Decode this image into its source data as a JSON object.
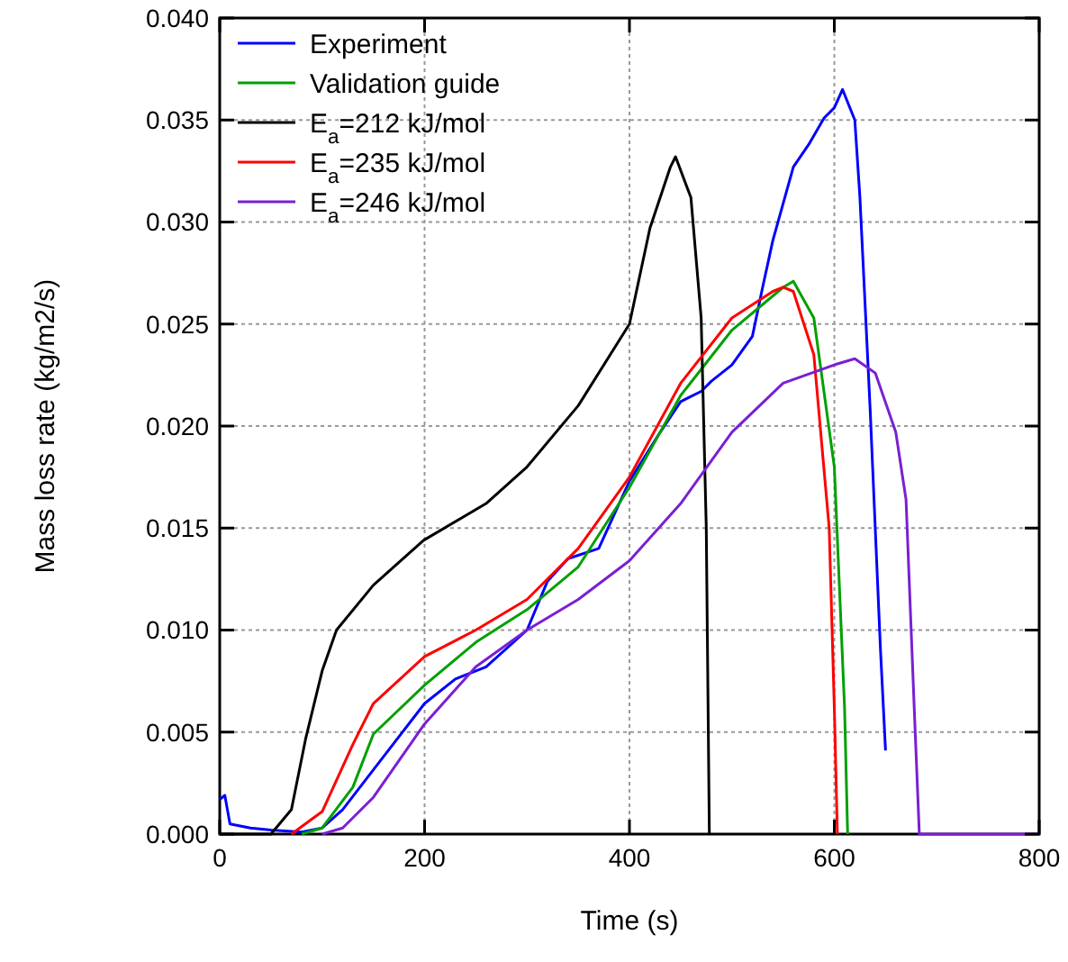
{
  "chart_data": {
    "type": "line",
    "xlabel": "Time (s)",
    "ylabel": "Mass loss rate (kg/m2/s)",
    "xlim": [
      0,
      800
    ],
    "ylim": [
      0,
      0.04
    ],
    "xticks": [
      0,
      200,
      400,
      600,
      800
    ],
    "yticks": [
      {
        "value": 0,
        "label": "0.000"
      },
      {
        "value": 0.005,
        "label": "0.005"
      },
      {
        "value": 0.01,
        "label": "0.010"
      },
      {
        "value": 0.015,
        "label": "0.015"
      },
      {
        "value": 0.02,
        "label": "0.020"
      },
      {
        "value": 0.025,
        "label": "0.025"
      },
      {
        "value": 0.03,
        "label": "0.030"
      },
      {
        "value": 0.035,
        "label": "0.035"
      },
      {
        "value": 0.04,
        "label": "0.040"
      }
    ],
    "grid": true,
    "legend": "top left",
    "line_style": "solid",
    "marker": "none",
    "series": [
      {
        "name": "Experiment",
        "color": "#0000ff",
        "x": [
          0,
          5,
          10,
          30,
          50,
          80,
          100,
          120,
          140,
          160,
          200,
          230,
          260,
          300,
          320,
          340,
          370,
          400,
          430,
          450,
          470,
          480,
          500,
          520,
          530,
          540,
          550,
          560,
          575,
          590,
          600,
          608,
          620,
          625,
          635,
          645,
          650
        ],
        "values": [
          0.0017,
          0.0019,
          0.0005,
          0.0003,
          0.0002,
          0.0001,
          0.0003,
          0.0012,
          0.0025,
          0.0038,
          0.0064,
          0.0076,
          0.0082,
          0.01,
          0.0124,
          0.0135,
          0.014,
          0.0173,
          0.0197,
          0.0212,
          0.0217,
          0.0222,
          0.023,
          0.0244,
          0.0268,
          0.0291,
          0.0309,
          0.0327,
          0.0338,
          0.0351,
          0.0356,
          0.0365,
          0.035,
          0.0312,
          0.0208,
          0.0091,
          0.0041
        ]
      },
      {
        "name": "Validation guide",
        "color": "#00a000",
        "x": [
          80,
          100,
          130,
          150,
          200,
          250,
          300,
          350,
          400,
          450,
          500,
          550,
          560,
          580,
          600,
          610,
          613
        ],
        "values": [
          0,
          0.0003,
          0.0023,
          0.0049,
          0.0073,
          0.0094,
          0.011,
          0.0131,
          0.017,
          0.0215,
          0.0247,
          0.0268,
          0.0271,
          0.0253,
          0.018,
          0.0062,
          0
        ]
      },
      {
        "name": "E$_{a}$=212 kJ/mol",
        "color": "#000000",
        "x": [
          0,
          50,
          70,
          84,
          100,
          114,
          150,
          199,
          260,
          300,
          350,
          400,
          420,
          440,
          445,
          460,
          470,
          475,
          478
        ],
        "values": [
          0,
          0,
          0.0012,
          0.0047,
          0.008,
          0.01,
          0.0122,
          0.0144,
          0.0162,
          0.018,
          0.021,
          0.025,
          0.0297,
          0.0327,
          0.0332,
          0.0312,
          0.0253,
          0.015,
          0
        ]
      },
      {
        "name": "E$_{a}$=235 kJ/mol",
        "color": "#ff0000",
        "x": [
          70,
          100,
          130,
          150,
          200,
          250,
          300,
          350,
          400,
          450,
          500,
          540,
          550,
          560,
          580,
          595,
          600,
          603
        ],
        "values": [
          0,
          0.0011,
          0.0044,
          0.0064,
          0.0087,
          0.01,
          0.0115,
          0.014,
          0.0175,
          0.0221,
          0.0253,
          0.0266,
          0.0268,
          0.0266,
          0.0235,
          0.015,
          0.0062,
          0
        ]
      },
      {
        "name": "E$_{a}$=246 kJ/mol",
        "color": "#7a1fd2",
        "x": [
          100,
          120,
          150,
          200,
          250,
          300,
          350,
          400,
          450,
          500,
          550,
          600,
          620,
          640,
          660,
          670,
          678,
          683,
          800
        ],
        "values": [
          0,
          0.0003,
          0.0018,
          0.0054,
          0.0082,
          0.01,
          0.0115,
          0.0134,
          0.0162,
          0.0197,
          0.0221,
          0.023,
          0.0233,
          0.0226,
          0.0197,
          0.0164,
          0.0062,
          0,
          0
        ]
      }
    ]
  }
}
